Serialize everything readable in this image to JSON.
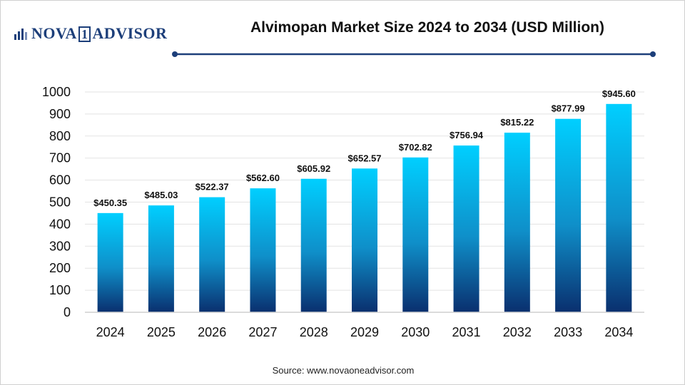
{
  "header": {
    "logo_text_left": "NOVA",
    "logo_text_mid": "1",
    "logo_text_right": "ADVISOR",
    "accent_color": "#1d3f7a"
  },
  "footer": {
    "source": "Source: www.novaoneadvisor.com"
  },
  "chart_data": {
    "type": "bar",
    "title": "Alvimopan Market Size 2024 to 2034 (USD Million)",
    "categories": [
      "2024",
      "2025",
      "2026",
      "2027",
      "2028",
      "2029",
      "2030",
      "2031",
      "2032",
      "2033",
      "2034"
    ],
    "values": [
      450.35,
      485.03,
      522.37,
      562.6,
      605.92,
      652.57,
      702.82,
      756.94,
      815.22,
      877.99,
      945.6
    ],
    "data_labels": [
      "$450.35",
      "$485.03",
      "$522.37",
      "$562.60",
      "$605.92",
      "$652.57",
      "$702.82",
      "$756.94",
      "$815.22",
      "$877.99",
      "$945.60"
    ],
    "ylim": [
      0,
      1000
    ],
    "yticks": [
      "0",
      "100",
      "200",
      "300",
      "400",
      "500",
      "600",
      "700",
      "800",
      "900",
      "1000"
    ],
    "grid": true,
    "legend": "none",
    "colors": {
      "bar_top": "#00cfff",
      "bar_mid": "#0f8fc9",
      "bar_bottom": "#0a2f6e",
      "grid": "#e3e3e3"
    }
  }
}
